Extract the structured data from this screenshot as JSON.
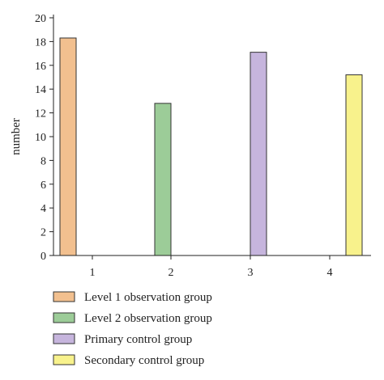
{
  "chart_data": {
    "type": "bar",
    "categories": [
      "1",
      "2",
      "3",
      "4"
    ],
    "series": [
      {
        "name": "Level 1 observation group",
        "color": "#f2c08f",
        "values": [
          18.3,
          null,
          null,
          null
        ]
      },
      {
        "name": "Level 2 observation group",
        "color": "#9ccc98",
        "values": [
          null,
          12.8,
          null,
          null
        ]
      },
      {
        "name": "Primary control group",
        "color": "#c6b5dd",
        "values": [
          null,
          null,
          17.1,
          null
        ]
      },
      {
        "name": "Secondary control group",
        "color": "#f8f28c",
        "values": [
          null,
          null,
          null,
          15.2
        ]
      }
    ],
    "ylabel": "number",
    "xlabel": "",
    "ylim": [
      0,
      20
    ],
    "yticks": [
      "0",
      "2",
      "4",
      "6",
      "8",
      "10",
      "12",
      "14",
      "16",
      "18",
      "20"
    ],
    "grid": false,
    "legend_position": "bottom-left"
  }
}
